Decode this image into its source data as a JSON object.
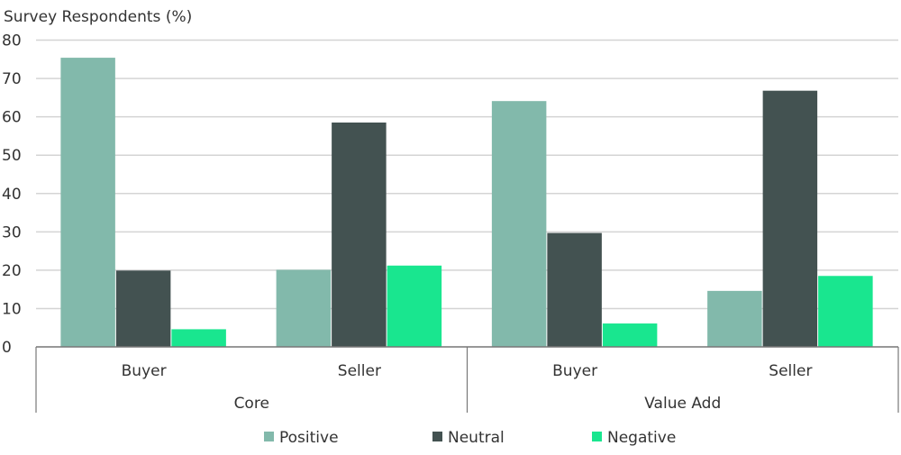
{
  "chart_data": {
    "type": "bar",
    "ylabel": "Survey Respondents (%)",
    "ylim": [
      0,
      80
    ],
    "yticks": [
      0,
      10,
      20,
      30,
      40,
      50,
      60,
      70,
      80
    ],
    "grid": true,
    "legend_position": "bottom",
    "groups": [
      {
        "label": "Core",
        "categories": [
          "Buyer",
          "Seller"
        ]
      },
      {
        "label": "Value Add",
        "categories": [
          "Buyer",
          "Seller"
        ]
      }
    ],
    "categories": [
      "Buyer",
      "Seller",
      "Buyer",
      "Seller"
    ],
    "series": [
      {
        "name": "Positive",
        "color": "#82b9ab",
        "values": [
          75.4,
          20.1,
          64.1,
          14.6
        ]
      },
      {
        "name": "Neutral",
        "color": "#435251",
        "values": [
          19.9,
          58.5,
          29.7,
          66.8
        ]
      },
      {
        "name": "Negative",
        "color": "#19e68f",
        "values": [
          4.6,
          21.2,
          6.1,
          18.5
        ]
      }
    ]
  }
}
